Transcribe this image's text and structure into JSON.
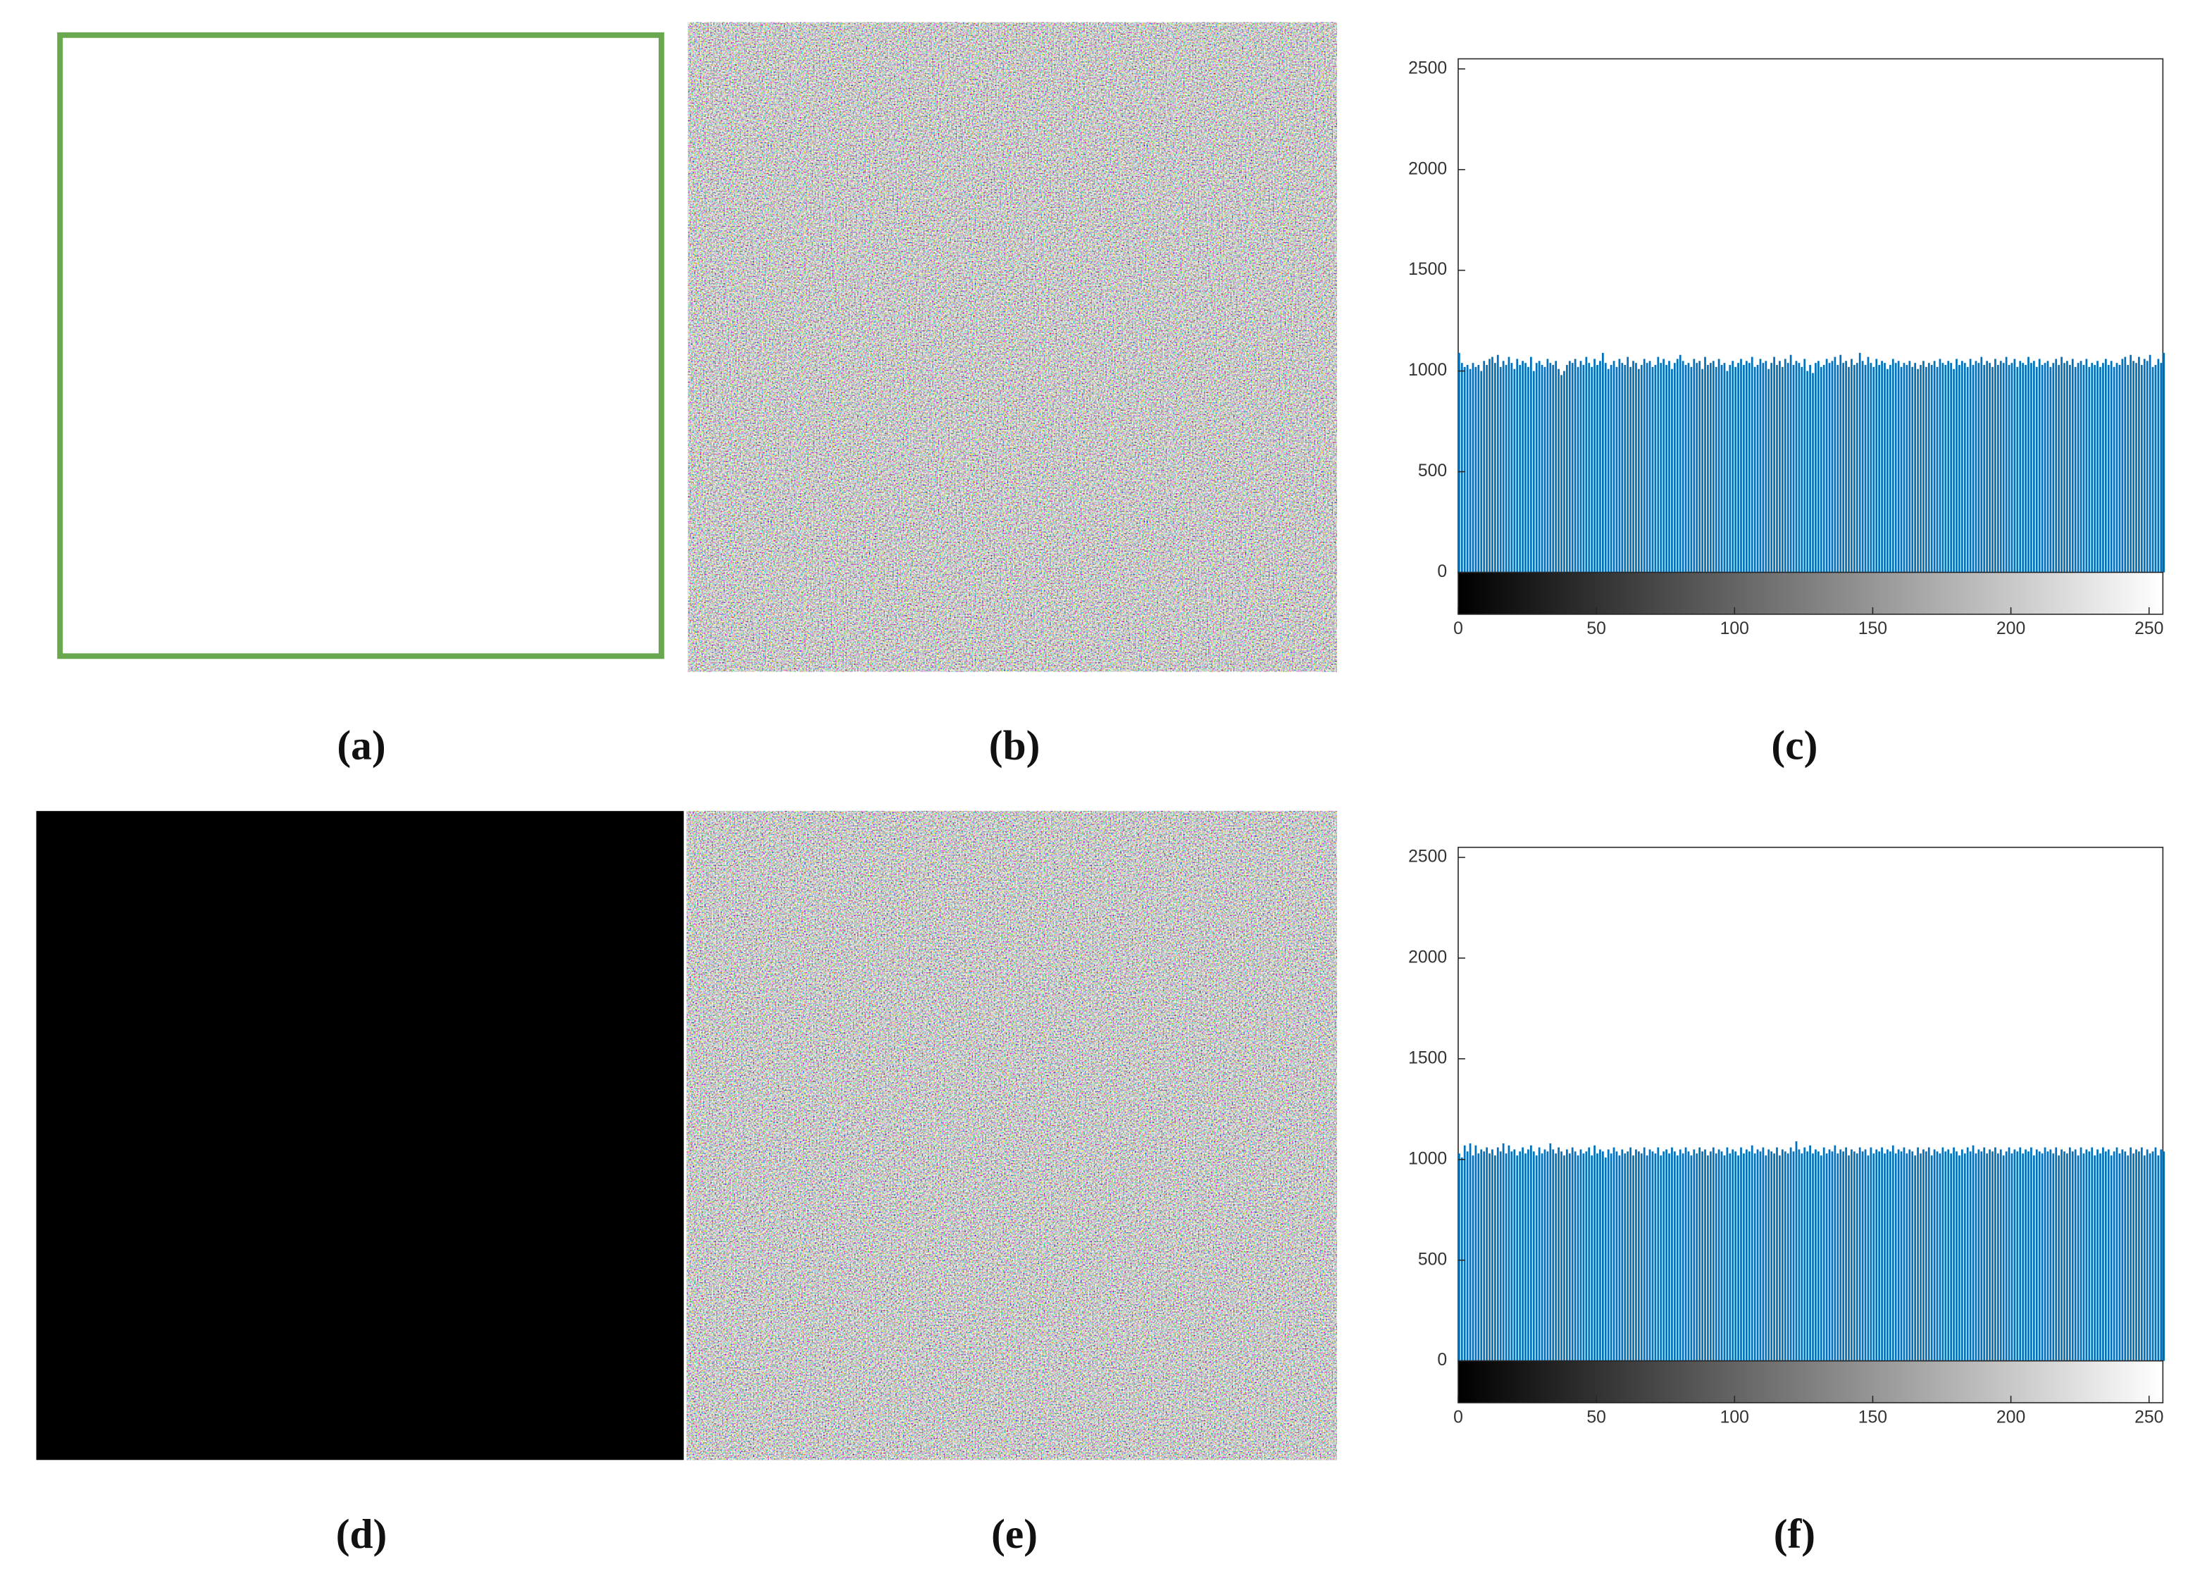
{
  "captions": [
    "(a)",
    "(b)",
    "(c)",
    "(d)",
    "(e)",
    "(f)"
  ],
  "chart_data": [
    {
      "type": "bar",
      "color": "#0072bd",
      "xlim": [
        0,
        255
      ],
      "ylim": [
        0,
        2550
      ],
      "xticks": [
        0,
        50,
        100,
        150,
        200,
        250
      ],
      "yticks": [
        0,
        500,
        1000,
        1500,
        2000,
        2500
      ],
      "x": [
        0,
        1,
        2,
        3,
        4,
        5,
        6,
        7,
        8,
        9,
        10,
        11,
        12,
        13,
        14,
        15,
        16,
        17,
        18,
        19,
        20,
        21,
        22,
        23,
        24,
        25,
        26,
        27,
        28,
        29,
        30,
        31,
        32,
        33,
        34,
        35,
        36,
        37,
        38,
        39,
        40,
        41,
        42,
        43,
        44,
        45,
        46,
        47,
        48,
        49,
        50,
        51,
        52,
        53,
        54,
        55,
        56,
        57,
        58,
        59,
        60,
        61,
        62,
        63,
        64,
        65,
        66,
        67,
        68,
        69,
        70,
        71,
        72,
        73,
        74,
        75,
        76,
        77,
        78,
        79,
        80,
        81,
        82,
        83,
        84,
        85,
        86,
        87,
        88,
        89,
        90,
        91,
        92,
        93,
        94,
        95,
        96,
        97,
        98,
        99,
        100,
        101,
        102,
        103,
        104,
        105,
        106,
        107,
        108,
        109,
        110,
        111,
        112,
        113,
        114,
        115,
        116,
        117,
        118,
        119,
        120,
        121,
        122,
        123,
        124,
        125,
        126,
        127,
        128,
        129,
        130,
        131,
        132,
        133,
        134,
        135,
        136,
        137,
        138,
        139,
        140,
        141,
        142,
        143,
        144,
        145,
        146,
        147,
        148,
        149,
        150,
        151,
        152,
        153,
        154,
        155,
        156,
        157,
        158,
        159,
        160,
        161,
        162,
        163,
        164,
        165,
        166,
        167,
        168,
        169,
        170,
        171,
        172,
        173,
        174,
        175,
        176,
        177,
        178,
        179,
        180,
        181,
        182,
        183,
        184,
        185,
        186,
        187,
        188,
        189,
        190,
        191,
        192,
        193,
        194,
        195,
        196,
        197,
        198,
        199,
        200,
        201,
        202,
        203,
        204,
        205,
        206,
        207,
        208,
        209,
        210,
        211,
        212,
        213,
        214,
        215,
        216,
        217,
        218,
        219,
        220,
        221,
        222,
        223,
        224,
        225,
        226,
        227,
        228,
        229,
        230,
        231,
        232,
        233,
        234,
        235,
        236,
        237,
        238,
        239,
        240,
        241,
        242,
        243,
        244,
        245,
        246,
        247,
        248,
        249,
        250,
        251,
        252,
        253,
        254,
        255
      ],
      "values": [
        1090,
        1040,
        1020,
        1030,
        1010,
        1040,
        1020,
        1030,
        1000,
        1050,
        1030,
        1060,
        1070,
        1040,
        1080,
        1020,
        1050,
        1030,
        1070,
        1040,
        1010,
        1060,
        1030,
        1050,
        1040,
        1020,
        1070,
        1000,
        1040,
        1050,
        1030,
        1020,
        1060,
        1040,
        1030,
        1050,
        1010,
        980,
        1000,
        1030,
        1050,
        1040,
        1060,
        1020,
        1050,
        1030,
        1070,
        1040,
        1020,
        1060,
        1030,
        1050,
        1090,
        1040,
        1010,
        1030,
        1050,
        1020,
        1060,
        1040,
        1030,
        1070,
        1020,
        1050,
        1040,
        1010,
        1030,
        1060,
        1040,
        1050,
        1020,
        1030,
        1070,
        1040,
        1060,
        1030,
        1050,
        1010,
        1040,
        1060,
        1080,
        1050,
        1030,
        1040,
        1020,
        1060,
        1040,
        1050,
        1010,
        1070,
        1030,
        1040,
        1050,
        1020,
        1060,
        1030,
        1040,
        1000,
        1030,
        1050,
        1020,
        1040,
        1060,
        1030,
        1050,
        1040,
        1070,
        1020,
        1030,
        1060,
        1040,
        1050,
        1010,
        1040,
        1070,
        1030,
        1050,
        1020,
        1060,
        1040,
        1080,
        1030,
        1050,
        1040,
        1020,
        1060,
        1000,
        1030,
        990,
        1040,
        1050,
        1020,
        1030,
        1060,
        1040,
        1050,
        1070,
        1030,
        1080,
        1040,
        1050,
        1020,
        1060,
        1030,
        1040,
        1090,
        1050,
        1030,
        1070,
        1040,
        1020,
        1060,
        1030,
        1050,
        1040,
        1010,
        1030,
        1060,
        1040,
        1050,
        1020,
        1040,
        1030,
        1050,
        1020,
        1040,
        1010,
        1030,
        1050,
        1020,
        1040,
        1030,
        1050,
        1020,
        1060,
        1040,
        1030,
        1050,
        1040,
        1010,
        1060,
        1030,
        1050,
        1040,
        1020,
        1060,
        1030,
        1050,
        1040,
        1070,
        1030,
        1050,
        1040,
        1020,
        1060,
        1030,
        1050,
        1040,
        1070,
        1030,
        1040,
        1060,
        1020,
        1050,
        1040,
        1030,
        1070,
        1040,
        1050,
        1020,
        1060,
        1030,
        1040,
        1050,
        1020,
        1040,
        1060,
        1030,
        1070,
        1040,
        1050,
        1030,
        1060,
        1020,
        1040,
        1050,
        1030,
        1060,
        1020,
        1040,
        1030,
        1050,
        1020,
        1040,
        1060,
        1030,
        1050,
        1020,
        1040,
        1030,
        1060,
        1070,
        1030,
        1080,
        1050,
        1040,
        1070,
        1030,
        1060,
        1050,
        1080,
        1020,
        1030,
        1060,
        1040,
        1090
      ]
    },
    {
      "type": "bar",
      "color": "#0072bd",
      "xlim": [
        0,
        255
      ],
      "ylim": [
        0,
        2550
      ],
      "xticks": [
        0,
        50,
        100,
        150,
        200,
        250
      ],
      "yticks": [
        0,
        500,
        1000,
        1500,
        2000,
        2500
      ],
      "x": [
        0,
        1,
        2,
        3,
        4,
        5,
        6,
        7,
        8,
        9,
        10,
        11,
        12,
        13,
        14,
        15,
        16,
        17,
        18,
        19,
        20,
        21,
        22,
        23,
        24,
        25,
        26,
        27,
        28,
        29,
        30,
        31,
        32,
        33,
        34,
        35,
        36,
        37,
        38,
        39,
        40,
        41,
        42,
        43,
        44,
        45,
        46,
        47,
        48,
        49,
        50,
        51,
        52,
        53,
        54,
        55,
        56,
        57,
        58,
        59,
        60,
        61,
        62,
        63,
        64,
        65,
        66,
        67,
        68,
        69,
        70,
        71,
        72,
        73,
        74,
        75,
        76,
        77,
        78,
        79,
        80,
        81,
        82,
        83,
        84,
        85,
        86,
        87,
        88,
        89,
        90,
        91,
        92,
        93,
        94,
        95,
        96,
        97,
        98,
        99,
        100,
        101,
        102,
        103,
        104,
        105,
        106,
        107,
        108,
        109,
        110,
        111,
        112,
        113,
        114,
        115,
        116,
        117,
        118,
        119,
        120,
        121,
        122,
        123,
        124,
        125,
        126,
        127,
        128,
        129,
        130,
        131,
        132,
        133,
        134,
        135,
        136,
        137,
        138,
        139,
        140,
        141,
        142,
        143,
        144,
        145,
        146,
        147,
        148,
        149,
        150,
        151,
        152,
        153,
        154,
        155,
        156,
        157,
        158,
        159,
        160,
        161,
        162,
        163,
        164,
        165,
        166,
        167,
        168,
        169,
        170,
        171,
        172,
        173,
        174,
        175,
        176,
        177,
        178,
        179,
        180,
        181,
        182,
        183,
        184,
        185,
        186,
        187,
        188,
        189,
        190,
        191,
        192,
        193,
        194,
        195,
        196,
        197,
        198,
        199,
        200,
        201,
        202,
        203,
        204,
        205,
        206,
        207,
        208,
        209,
        210,
        211,
        212,
        213,
        214,
        215,
        216,
        217,
        218,
        219,
        220,
        221,
        222,
        223,
        224,
        225,
        226,
        227,
        228,
        229,
        230,
        231,
        232,
        233,
        234,
        235,
        236,
        237,
        238,
        239,
        240,
        241,
        242,
        243,
        244,
        245,
        246,
        247,
        248,
        249,
        250,
        251,
        252,
        253,
        254,
        255
      ],
      "values": [
        1030,
        1010,
        1070,
        1040,
        1080,
        1020,
        1070,
        1030,
        1050,
        1040,
        1060,
        1030,
        1050,
        1020,
        1060,
        1040,
        1080,
        1030,
        1070,
        1040,
        1050,
        1020,
        1040,
        1060,
        1030,
        1050,
        1070,
        1040,
        1020,
        1060,
        1030,
        1050,
        1040,
        1080,
        1050,
        1030,
        1060,
        1040,
        1020,
        1050,
        1030,
        1060,
        1040,
        1020,
        1050,
        1030,
        1040,
        1060,
        1020,
        1070,
        1030,
        1050,
        1040,
        1010,
        1050,
        1030,
        1060,
        1040,
        1020,
        1050,
        1030,
        1040,
        1060,
        1020,
        1050,
        1040,
        1030,
        1060,
        1020,
        1050,
        1040,
        1030,
        1060,
        1020,
        1040,
        1050,
        1030,
        1060,
        1040,
        1020,
        1050,
        1030,
        1060,
        1040,
        1020,
        1050,
        1030,
        1060,
        1040,
        1050,
        1020,
        1040,
        1060,
        1030,
        1050,
        1040,
        1020,
        1060,
        1030,
        1050,
        1040,
        1020,
        1060,
        1030,
        1050,
        1040,
        1070,
        1030,
        1050,
        1040,
        1060,
        1020,
        1050,
        1040,
        1030,
        1060,
        1020,
        1050,
        1040,
        1030,
        1060,
        1040,
        1090,
        1050,
        1030,
        1060,
        1040,
        1070,
        1030,
        1050,
        1040,
        1020,
        1060,
        1030,
        1050,
        1040,
        1070,
        1030,
        1050,
        1040,
        1060,
        1020,
        1050,
        1040,
        1030,
        1060,
        1040,
        1050,
        1020,
        1060,
        1030,
        1050,
        1040,
        1060,
        1030,
        1050,
        1040,
        1070,
        1030,
        1050,
        1040,
        1060,
        1030,
        1050,
        1040,
        1020,
        1060,
        1030,
        1050,
        1040,
        1060,
        1020,
        1050,
        1040,
        1030,
        1060,
        1040,
        1050,
        1030,
        1060,
        1040,
        1020,
        1050,
        1030,
        1060,
        1040,
        1070,
        1030,
        1050,
        1040,
        1060,
        1030,
        1050,
        1040,
        1060,
        1030,
        1050,
        1020,
        1040,
        1060,
        1030,
        1050,
        1040,
        1060,
        1030,
        1050,
        1040,
        1060,
        1020,
        1050,
        1040,
        1030,
        1060,
        1040,
        1050,
        1030,
        1060,
        1020,
        1050,
        1040,
        1030,
        1060,
        1040,
        1050,
        1020,
        1060,
        1030,
        1050,
        1040,
        1060,
        1020,
        1050,
        1030,
        1060,
        1040,
        1050,
        1020,
        1040,
        1060,
        1030,
        1050,
        1040,
        1020,
        1060,
        1030,
        1050,
        1040,
        1060,
        1020,
        1050,
        1030,
        1040,
        1060,
        1020,
        1050,
        1040
      ]
    }
  ]
}
